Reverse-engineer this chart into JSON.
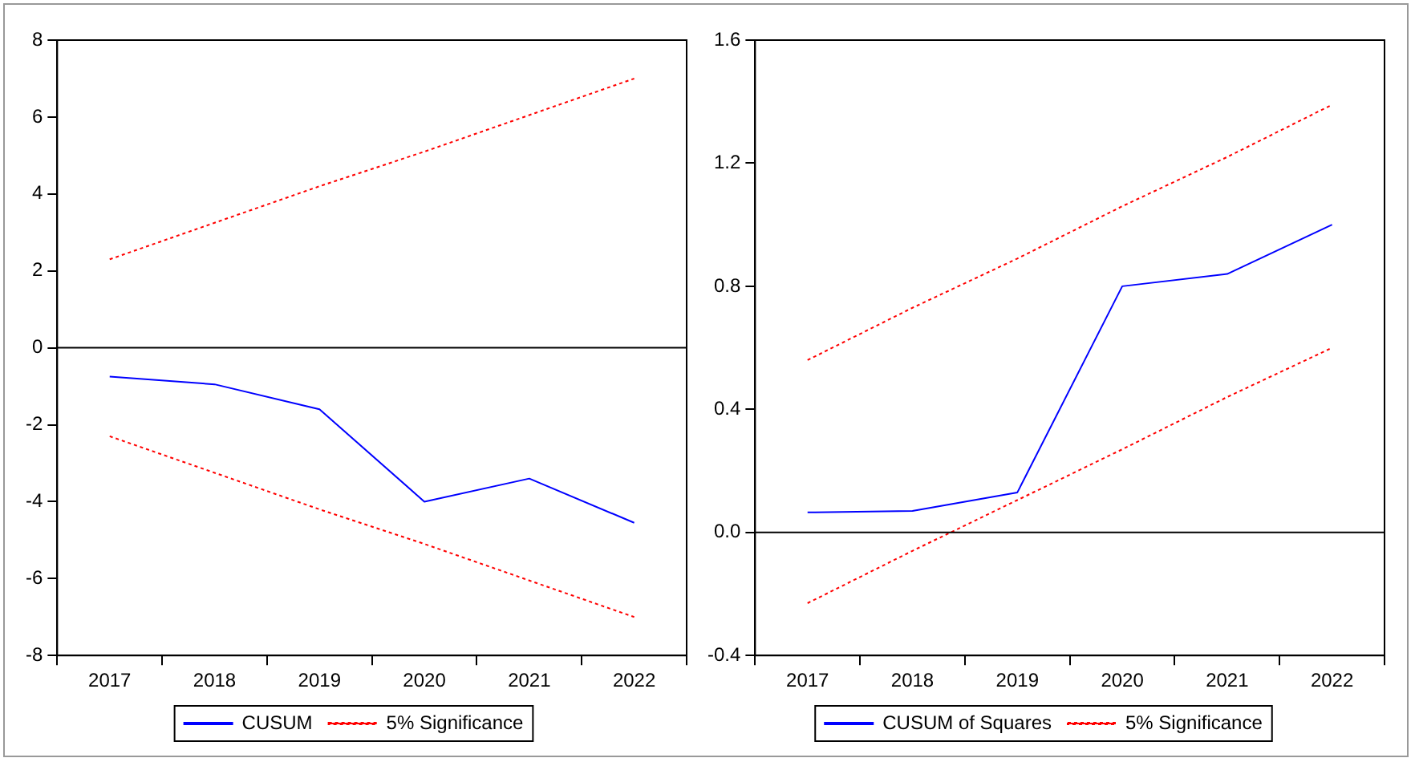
{
  "chart_data": [
    {
      "type": "line",
      "categories": [
        "2017",
        "2018",
        "2019",
        "2020",
        "2021",
        "2022"
      ],
      "ylim": [
        -8,
        8
      ],
      "yticks": [
        -8,
        -6,
        -4,
        -2,
        0,
        2,
        4,
        6,
        8
      ],
      "grid": false,
      "legend": "bottom",
      "marker": "none",
      "ref_lines": [
        {
          "axis": "y",
          "value": 0,
          "color": "#000000"
        }
      ],
      "series": [
        {
          "name": "CUSUM",
          "color": "#0000ff",
          "line_style": "solid",
          "values": [
            -0.75,
            -0.95,
            -1.6,
            -4.0,
            -3.4,
            -4.55
          ]
        },
        {
          "name": "5% Significance",
          "color": "#ff0000",
          "line_style": "dotted",
          "values": [
            2.3,
            3.25,
            4.2,
            5.1,
            6.05,
            7.0
          ]
        },
        {
          "color": "#ff0000",
          "line_style": "dotted",
          "values": [
            -2.3,
            -3.25,
            -4.2,
            -5.1,
            -6.05,
            -7.0
          ]
        }
      ]
    },
    {
      "type": "line",
      "categories": [
        "2017",
        "2018",
        "2019",
        "2020",
        "2021",
        "2022"
      ],
      "ylim": [
        -0.4,
        1.6
      ],
      "yticks": [
        {
          "value": -0.4,
          "label": "-0.4"
        },
        {
          "value": 0,
          "label": "0.0"
        },
        {
          "value": 0.4,
          "label": "0.4"
        },
        {
          "value": 0.8,
          "label": "0.8"
        },
        {
          "value": 1.2,
          "label": "1.2"
        },
        {
          "value": 1.6,
          "label": "1.6"
        }
      ],
      "grid": false,
      "legend": "bottom",
      "marker": "none",
      "ref_lines": [
        {
          "axis": "y",
          "value": 0,
          "color": "#000000"
        }
      ],
      "series": [
        {
          "name": "CUSUM of Squares",
          "color": "#0000ff",
          "line_style": "solid",
          "values": [
            0.065,
            0.07,
            0.13,
            0.8,
            0.84,
            1.0
          ]
        },
        {
          "name": "5% Significance",
          "color": "#ff0000",
          "line_style": "dotted",
          "values": [
            0.56,
            0.73,
            0.89,
            1.06,
            1.22,
            1.39
          ]
        },
        {
          "color": "#ff0000",
          "line_style": "dotted",
          "values": [
            -0.23,
            -0.06,
            0.105,
            0.27,
            0.44,
            0.6
          ]
        }
      ]
    }
  ]
}
